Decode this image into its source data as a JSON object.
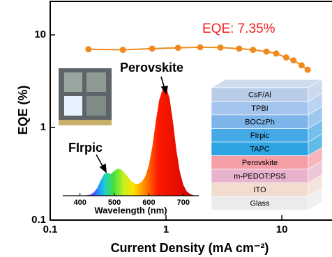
{
  "chart_data": [
    {
      "type": "line",
      "xlabel": "Current Density (mA cm⁻²)",
      "ylabel": "EQE (%)",
      "annotation": "EQE: 7.35%",
      "log_x": true,
      "log_y": true,
      "x": [
        0.214,
        0.424,
        0.758,
        1.27,
        1.97,
        2.95,
        4.28,
        5.64,
        7.37,
        8.94,
        10.9,
        12.6,
        14.8,
        16.7
      ],
      "series": [
        {
          "color": "#f08a1e",
          "values": [
            7.0,
            6.9,
            7.1,
            7.25,
            7.35,
            7.3,
            7.1,
            6.9,
            6.6,
            6.3,
            5.7,
            5.3,
            4.7,
            4.2
          ]
        }
      ],
      "xlim": [
        0.1,
        26
      ],
      "ylim": [
        0.1,
        23
      ],
      "xticks": [
        0.1,
        1,
        10
      ],
      "yticks": [
        0.1,
        1,
        10
      ]
    },
    {
      "type": "area",
      "xlabel": "Wavelength (nm)",
      "annotations": [
        "Perovskite",
        "FIrpic"
      ],
      "x": [
        400,
        410,
        420,
        430,
        440,
        450,
        460,
        470,
        480,
        490,
        500,
        510,
        520,
        530,
        540,
        550,
        560,
        570,
        580,
        590,
        600,
        610,
        620,
        630,
        640,
        650,
        660,
        670,
        680,
        690,
        700,
        710,
        720,
        730,
        740
      ],
      "values": [
        0,
        0,
        0.005,
        0.01,
        0.03,
        0.07,
        0.14,
        0.2,
        0.21,
        0.2,
        0.23,
        0.25,
        0.24,
        0.21,
        0.17,
        0.13,
        0.11,
        0.11,
        0.13,
        0.18,
        0.28,
        0.45,
        0.68,
        0.88,
        0.98,
        1.0,
        0.9,
        0.68,
        0.42,
        0.22,
        0.1,
        0.04,
        0.015,
        0.005,
        0
      ],
      "xlim": [
        350,
        745
      ],
      "ylim": [
        0,
        1
      ],
      "xticks": [
        400,
        500,
        600,
        700
      ]
    }
  ],
  "device_stack": {
    "layers": [
      {
        "name": "CsF/Al",
        "color": "#b9cde9"
      },
      {
        "name": "TPBI",
        "color": "#a4c6ee"
      },
      {
        "name": "BOCzPh",
        "color": "#7db4ea"
      },
      {
        "name": "FIrpic",
        "color": "#45a9e6"
      },
      {
        "name": "TAPC",
        "color": "#2ea3e1"
      },
      {
        "name": "Perovskite",
        "color": "#f59ea6"
      },
      {
        "name": "m-PEDOT:PSS",
        "color": "#e8b3cc"
      },
      {
        "name": "ITO",
        "color": "#f2dbcf"
      },
      {
        "name": "Glass",
        "color": "#ebebeb"
      }
    ]
  }
}
